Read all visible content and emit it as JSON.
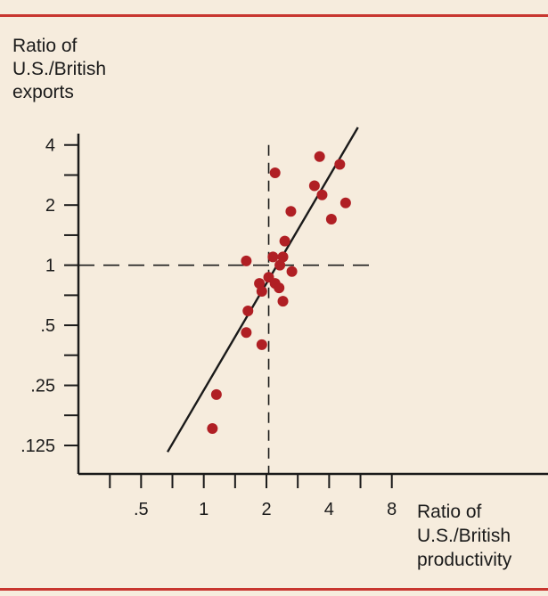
{
  "chart_data": {
    "type": "scatter",
    "xscale": "log2",
    "yscale": "log2",
    "xlabel_lines": [
      "Ratio of",
      "U.S./British",
      "productivity"
    ],
    "ylabel_lines": [
      "Ratio of",
      "U.S./British",
      "exports"
    ],
    "x_tick_labels": [
      {
        "value": 0.5,
        "label": ".5"
      },
      {
        "value": 1,
        "label": "1"
      },
      {
        "value": 2,
        "label": "2"
      },
      {
        "value": 4,
        "label": "4"
      },
      {
        "value": 8,
        "label": "8"
      }
    ],
    "y_tick_labels": [
      {
        "value": 4,
        "label": "4"
      },
      {
        "value": 2,
        "label": "2"
      },
      {
        "value": 1,
        "label": "1"
      },
      {
        "value": 0.5,
        "label": ".5"
      },
      {
        "value": 0.25,
        "label": ".25"
      },
      {
        "value": 0.125,
        "label": ".125"
      }
    ],
    "x_minor_ticks": [
      0.354,
      0.707,
      1.414,
      2.828,
      5.657
    ],
    "y_minor_ticks": [
      2.828,
      1.414,
      0.707,
      0.354,
      0.177
    ],
    "xlim": [
      0.25,
      45
    ],
    "ylim": [
      0.09,
      5.6
    ],
    "reference_lines": {
      "x": 2.05,
      "y": 1,
      "x_range": [
        0.25,
        6.3
      ],
      "y_range": [
        0.09,
        4
      ]
    },
    "trend_line": [
      [
        0.67,
        0.116
      ],
      [
        5.5,
        4.9
      ]
    ],
    "marker_color": "#b01f24",
    "points": [
      {
        "x": 1.1,
        "y": 0.152
      },
      {
        "x": 1.15,
        "y": 0.225
      },
      {
        "x": 1.6,
        "y": 1.05
      },
      {
        "x": 1.63,
        "y": 0.59
      },
      {
        "x": 1.6,
        "y": 0.46
      },
      {
        "x": 1.85,
        "y": 0.81
      },
      {
        "x": 1.9,
        "y": 0.74
      },
      {
        "x": 1.9,
        "y": 0.4
      },
      {
        "x": 2.05,
        "y": 0.87
      },
      {
        "x": 2.15,
        "y": 1.1
      },
      {
        "x": 2.2,
        "y": 2.9
      },
      {
        "x": 2.2,
        "y": 0.81
      },
      {
        "x": 2.3,
        "y": 0.77
      },
      {
        "x": 2.32,
        "y": 1.0
      },
      {
        "x": 2.4,
        "y": 1.1
      },
      {
        "x": 2.45,
        "y": 1.32
      },
      {
        "x": 2.4,
        "y": 0.66
      },
      {
        "x": 2.65,
        "y": 0.93
      },
      {
        "x": 2.62,
        "y": 1.86
      },
      {
        "x": 3.4,
        "y": 2.5
      },
      {
        "x": 3.6,
        "y": 3.5
      },
      {
        "x": 3.7,
        "y": 2.25
      },
      {
        "x": 4.1,
        "y": 1.7
      },
      {
        "x": 4.5,
        "y": 3.2
      },
      {
        "x": 4.8,
        "y": 2.05
      }
    ]
  }
}
